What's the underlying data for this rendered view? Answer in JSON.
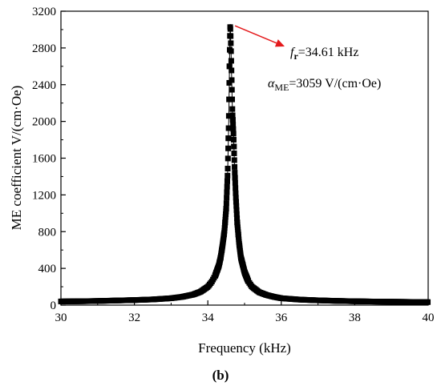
{
  "chart_data": {
    "type": "scatter",
    "xlabel": "Frequency (kHz)",
    "ylabel": "ME coefficient V/(cm·Oe)",
    "xlim": [
      30,
      40
    ],
    "ylim": [
      0,
      3200
    ],
    "x_ticks": [
      "30",
      "32",
      "34",
      "36",
      "38",
      "40"
    ],
    "y_ticks": [
      "0",
      "400",
      "800",
      "1200",
      "1600",
      "2000",
      "2400",
      "2800",
      "3200"
    ],
    "grid": false,
    "series": [
      {
        "marker": "square",
        "line": "thin",
        "x": [
          30.0,
          30.5,
          31.0,
          31.5,
          32.0,
          32.5,
          33.0,
          33.3,
          33.6,
          33.8,
          34.0,
          34.1,
          34.2,
          34.3,
          34.35,
          34.4,
          34.45,
          34.5,
          34.54,
          34.57,
          34.59,
          34.6,
          34.61,
          34.63,
          34.65,
          34.67,
          34.7,
          34.73,
          34.76,
          34.8,
          34.85,
          34.9,
          35.0,
          35.1,
          35.2,
          35.4,
          35.6,
          35.8,
          36.0,
          36.5,
          37.0,
          37.5,
          38.0,
          38.5,
          39.0,
          39.5,
          40.0
        ],
        "y": [
          40,
          42,
          45,
          50,
          55,
          62,
          75,
          90,
          115,
          145,
          200,
          250,
          320,
          430,
          520,
          650,
          800,
          1050,
          1450,
          2000,
          2600,
          2900,
          3059,
          2800,
          2450,
          2100,
          1850,
          1480,
          1200,
          900,
          680,
          520,
          360,
          260,
          200,
          140,
          110,
          90,
          75,
          60,
          52,
          46,
          42,
          39,
          37,
          35,
          33
        ]
      }
    ],
    "annotations": {
      "peak": {
        "x": 34.61,
        "y": 3059
      },
      "fr_label": "f",
      "fr_sub": "r",
      "fr_value": "=34.61 kHz",
      "alpha_label": "α",
      "alpha_sub": "ME",
      "alpha_value": "=3059 V/(cm·Oe)",
      "arrow_color": "#e41a1c"
    },
    "panel_label": "(b)"
  }
}
